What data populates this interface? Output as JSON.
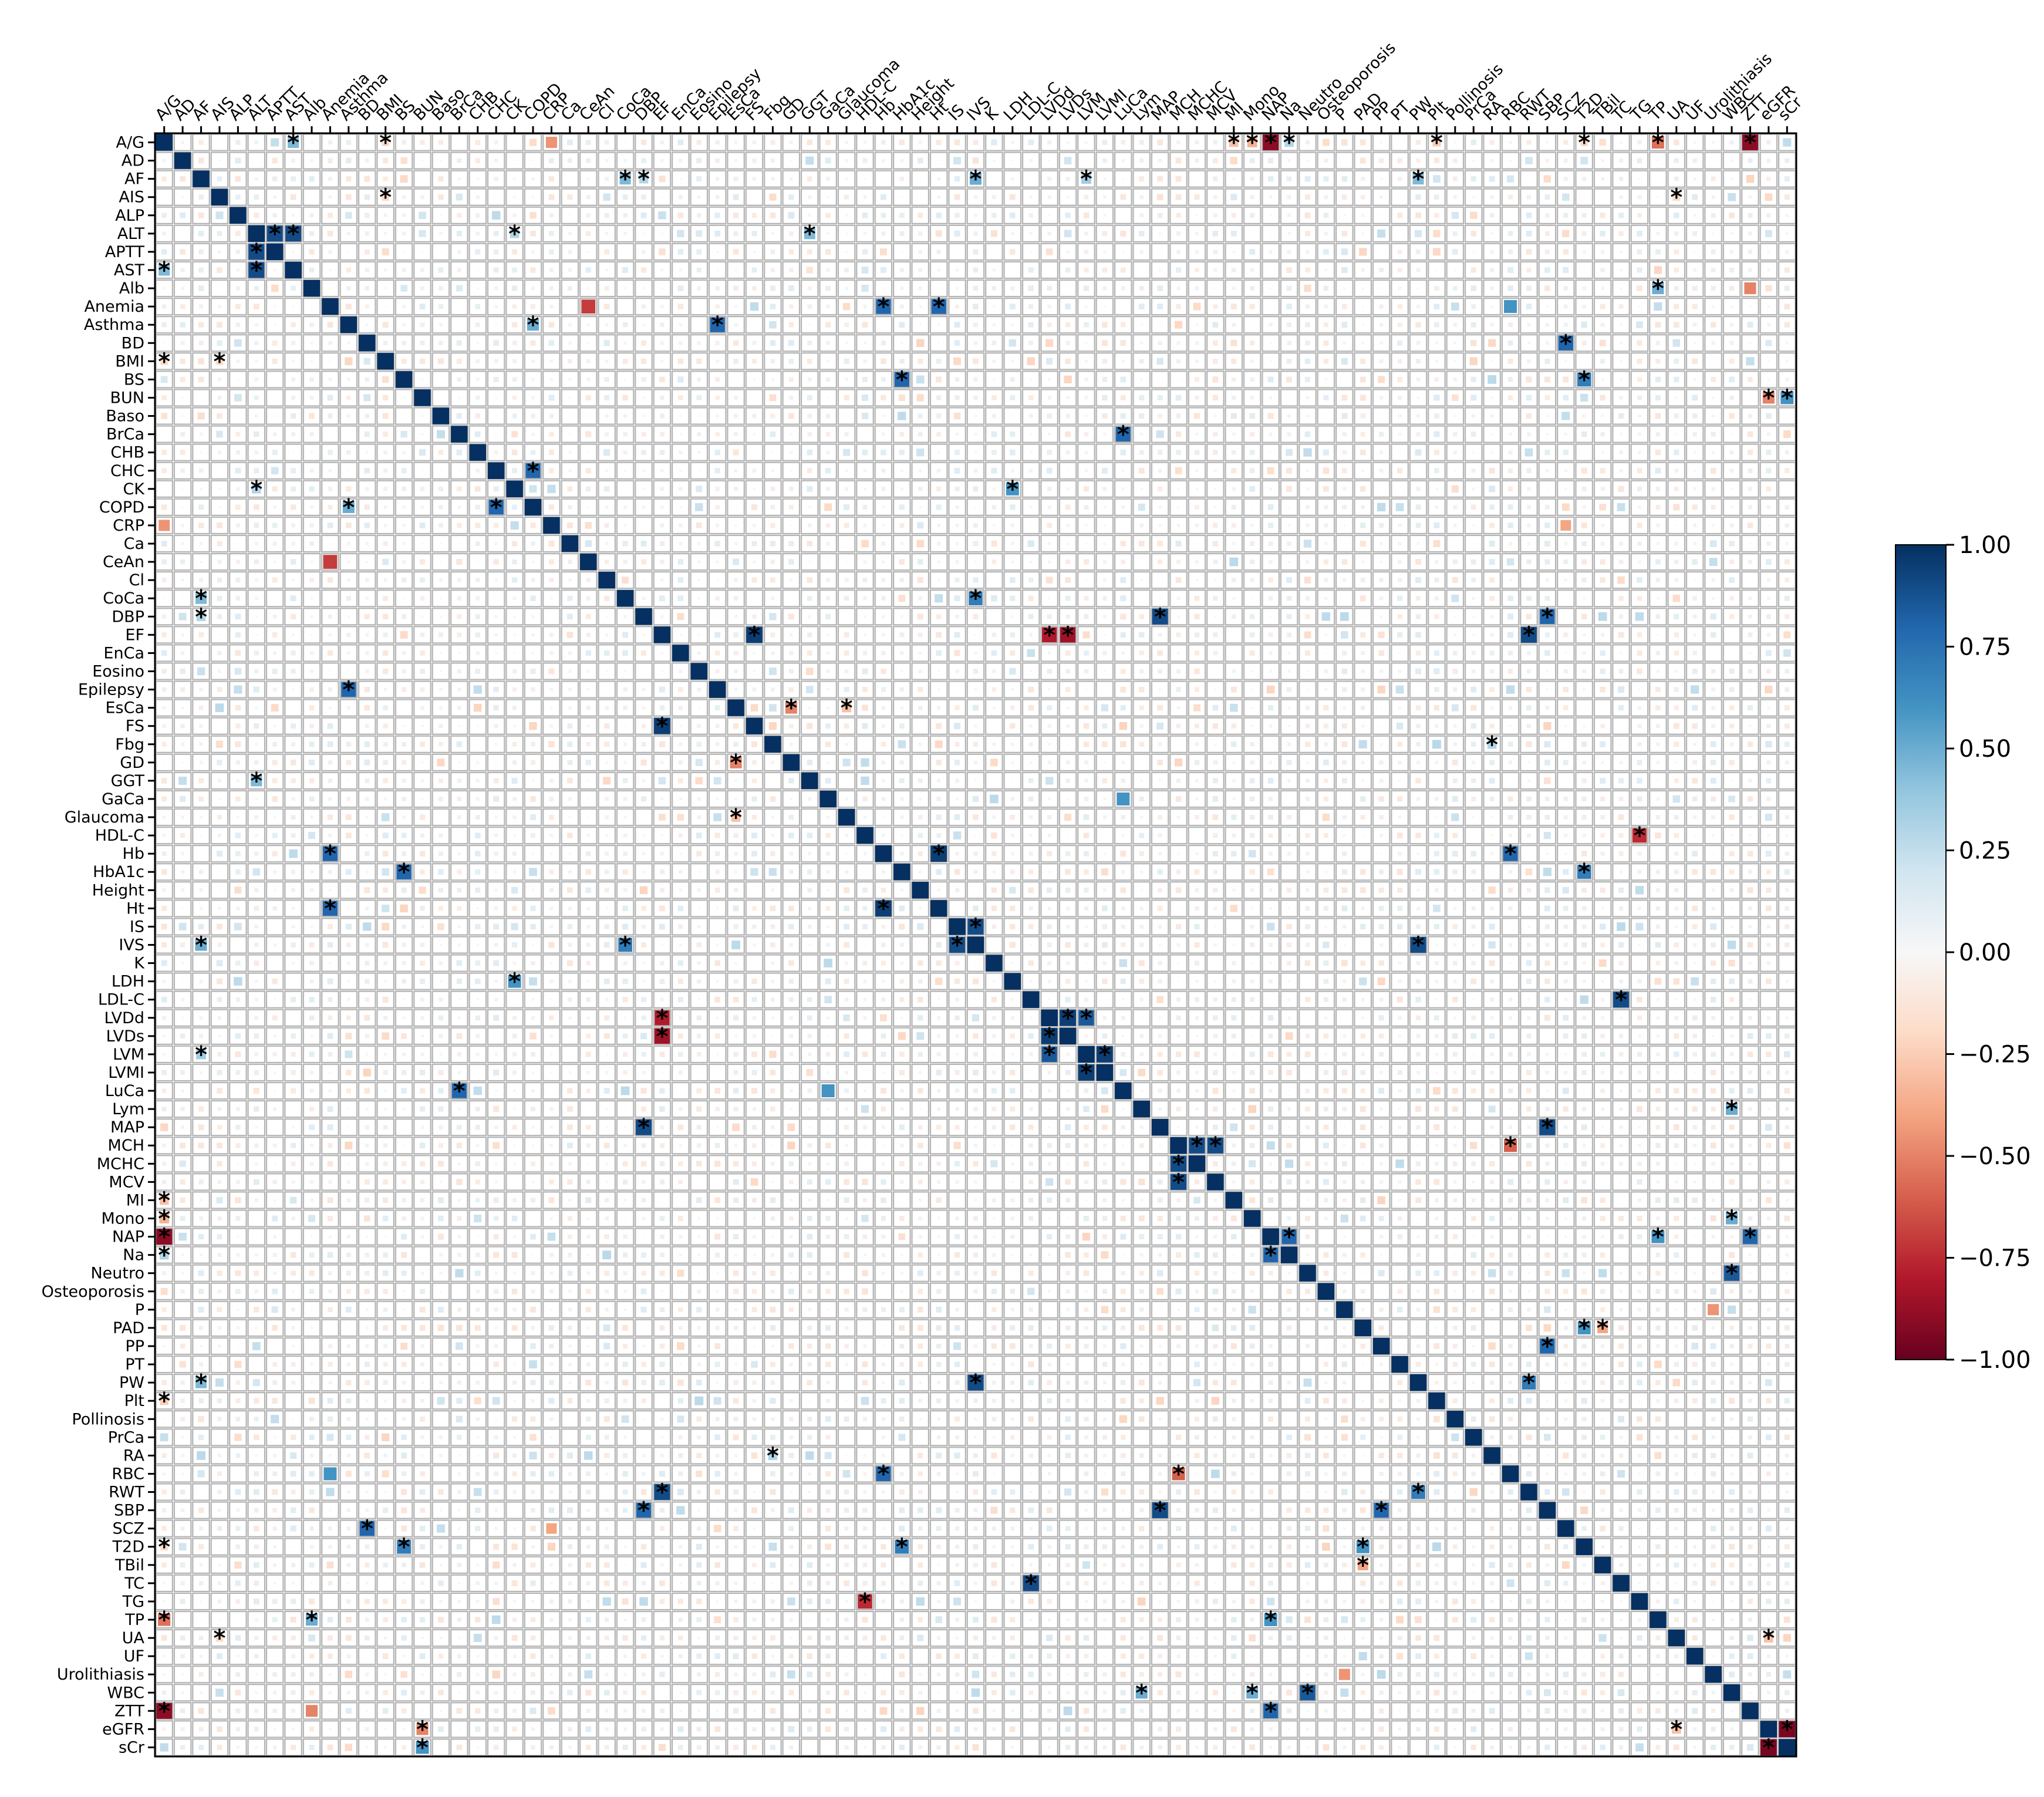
{
  "chart_data": {
    "type": "heatmap",
    "title": "",
    "xlabel": "",
    "ylabel": "",
    "variables": [
      "A/G",
      "AD",
      "AF",
      "AIS",
      "ALP",
      "ALT",
      "APTT",
      "AST",
      "Alb",
      "Anemia",
      "Asthma",
      "BD",
      "BMI",
      "BS",
      "BUN",
      "Baso",
      "BrCa",
      "CHB",
      "CHC",
      "CK",
      "COPD",
      "CRP",
      "Ca",
      "CeAn",
      "Cl",
      "CoCa",
      "DBP",
      "EF",
      "EnCa",
      "Eosino",
      "Epilepsy",
      "EsCa",
      "FS",
      "Fbg",
      "GD",
      "GGT",
      "GaCa",
      "Glaucoma",
      "HDL-C",
      "Hb",
      "HbA1c",
      "Height",
      "Ht",
      "IS",
      "IVS",
      "K",
      "LDH",
      "LDL-C",
      "LVDd",
      "LVDs",
      "LVM",
      "LVMI",
      "LuCa",
      "Lym",
      "MAP",
      "MCH",
      "MCHC",
      "MCV",
      "MI",
      "Mono",
      "NAP",
      "Na",
      "Neutro",
      "Osteoporosis",
      "P",
      "PAD",
      "PP",
      "PT",
      "PW",
      "Plt",
      "Pollinosis",
      "PrCa",
      "RA",
      "RBC",
      "RWT",
      "SBP",
      "SCZ",
      "T2D",
      "TBil",
      "TC",
      "TG",
      "TP",
      "UA",
      "UF",
      "Urolithiasis",
      "WBC",
      "ZTT",
      "eGFR",
      "sCr"
    ],
    "value_range": [
      -1.0,
      1.0
    ],
    "colormap": "RdBu",
    "colorbar_ticks": [
      "1.00",
      "0.75",
      "0.50",
      "0.25",
      "0.00",
      "−0.25",
      "−0.50",
      "−0.75",
      "−1.00"
    ],
    "colorbar_tick_values": [
      1.0,
      0.75,
      0.5,
      0.25,
      0.0,
      -0.25,
      -0.5,
      -0.75,
      -1.0
    ],
    "significance_marker": "*",
    "diagonal_value": 1.0,
    "grid": true,
    "notable_pairs": [
      {
        "a": "A/G",
        "b": "AST",
        "r": 0.45,
        "sig": true
      },
      {
        "a": "A/G",
        "b": "BMI",
        "r": -0.2,
        "sig": true
      },
      {
        "a": "A/G",
        "b": "CRP",
        "r": -0.45,
        "sig": false
      },
      {
        "a": "A/G",
        "b": "MI",
        "r": -0.3,
        "sig": true
      },
      {
        "a": "A/G",
        "b": "Mono",
        "r": -0.35,
        "sig": true
      },
      {
        "a": "A/G",
        "b": "NAP",
        "r": -0.9,
        "sig": true
      },
      {
        "a": "A/G",
        "b": "Na",
        "r": 0.3,
        "sig": true
      },
      {
        "a": "A/G",
        "b": "Plt",
        "r": -0.25,
        "sig": true
      },
      {
        "a": "A/G",
        "b": "T2D",
        "r": -0.2,
        "sig": true
      },
      {
        "a": "A/G",
        "b": "TP",
        "r": -0.55,
        "sig": true
      },
      {
        "a": "A/G",
        "b": "ZTT",
        "r": -0.9,
        "sig": true
      },
      {
        "a": "AD",
        "b": "IS",
        "r": 0.2,
        "sig": false
      },
      {
        "a": "AF",
        "b": "CoCa",
        "r": 0.45,
        "sig": true
      },
      {
        "a": "AF",
        "b": "DBP",
        "r": 0.3,
        "sig": true
      },
      {
        "a": "AF",
        "b": "IVS",
        "r": 0.5,
        "sig": true
      },
      {
        "a": "AF",
        "b": "PW",
        "r": 0.45,
        "sig": true
      },
      {
        "a": "AF",
        "b": "LVM",
        "r": 0.35,
        "sig": true
      },
      {
        "a": "AIS",
        "b": "BMI",
        "r": -0.2,
        "sig": true
      },
      {
        "a": "AIS",
        "b": "UA",
        "r": -0.2,
        "sig": true
      },
      {
        "a": "ALT",
        "b": "APTT",
        "r": 0.9,
        "sig": true
      },
      {
        "a": "ALT",
        "b": "AST",
        "r": 0.9,
        "sig": true
      },
      {
        "a": "ALT",
        "b": "GGT",
        "r": 0.45,
        "sig": true
      },
      {
        "a": "ALT",
        "b": "CK",
        "r": 0.3,
        "sig": true
      },
      {
        "a": "Alb",
        "b": "TP",
        "r": 0.5,
        "sig": true
      },
      {
        "a": "Alb",
        "b": "ZTT",
        "r": -0.5,
        "sig": false
      },
      {
        "a": "Anemia",
        "b": "Hb",
        "r": 0.8,
        "sig": true
      },
      {
        "a": "Anemia",
        "b": "Ht",
        "r": 0.8,
        "sig": true
      },
      {
        "a": "Anemia",
        "b": "CeAn",
        "r": -0.7,
        "sig": false
      },
      {
        "a": "Anemia",
        "b": "RBC",
        "r": 0.6,
        "sig": false
      },
      {
        "a": "Asthma",
        "b": "Epilepsy",
        "r": 0.8,
        "sig": true
      },
      {
        "a": "Asthma",
        "b": "COPD",
        "r": 0.5,
        "sig": true
      },
      {
        "a": "BD",
        "b": "SCZ",
        "r": 0.8,
        "sig": true
      },
      {
        "a": "BS",
        "b": "HbA1c",
        "r": 0.8,
        "sig": true
      },
      {
        "a": "BS",
        "b": "T2D",
        "r": 0.7,
        "sig": true
      },
      {
        "a": "BUN",
        "b": "eGFR",
        "r": -0.5,
        "sig": true
      },
      {
        "a": "BUN",
        "b": "sCr",
        "r": 0.6,
        "sig": true
      },
      {
        "a": "BrCa",
        "b": "LuCa",
        "r": 0.8,
        "sig": true
      },
      {
        "a": "CHC",
        "b": "COPD",
        "r": 0.8,
        "sig": true
      },
      {
        "a": "CK",
        "b": "LDH",
        "r": 0.6,
        "sig": true
      },
      {
        "a": "CoCa",
        "b": "IVS",
        "r": 0.7,
        "sig": true
      },
      {
        "a": "DBP",
        "b": "MAP",
        "r": 0.9,
        "sig": true
      },
      {
        "a": "DBP",
        "b": "SBP",
        "r": 0.8,
        "sig": true
      },
      {
        "a": "EF",
        "b": "FS",
        "r": 0.95,
        "sig": true
      },
      {
        "a": "EF",
        "b": "LVDs",
        "r": -0.85,
        "sig": true
      },
      {
        "a": "EF",
        "b": "LVDd",
        "r": -0.8,
        "sig": true
      },
      {
        "a": "EF",
        "b": "RWT",
        "r": 0.9,
        "sig": true
      },
      {
        "a": "EsCa",
        "b": "GD",
        "r": -0.5,
        "sig": true
      },
      {
        "a": "GaCa",
        "b": "LuCa",
        "r": 0.6,
        "sig": false
      },
      {
        "a": "HDL-C",
        "b": "TG",
        "r": -0.75,
        "sig": true
      },
      {
        "a": "Hb",
        "b": "Ht",
        "r": 0.95,
        "sig": true
      },
      {
        "a": "Hb",
        "b": "RBC",
        "r": 0.8,
        "sig": true
      },
      {
        "a": "IS",
        "b": "IVS",
        "r": 0.9,
        "sig": true
      },
      {
        "a": "LDL-C",
        "b": "TC",
        "r": 0.9,
        "sig": true
      },
      {
        "a": "LVDd",
        "b": "LVDs",
        "r": 0.95,
        "sig": true
      },
      {
        "a": "LVDd",
        "b": "LVM",
        "r": 0.85,
        "sig": true
      },
      {
        "a": "LVM",
        "b": "LVMI",
        "r": 0.95,
        "sig": true
      },
      {
        "a": "MAP",
        "b": "SBP",
        "r": 0.9,
        "sig": true
      },
      {
        "a": "MCH",
        "b": "MCHC",
        "r": 0.9,
        "sig": true
      },
      {
        "a": "MCH",
        "b": "MCV",
        "r": 0.9,
        "sig": true
      },
      {
        "a": "MCH",
        "b": "RBC",
        "r": -0.6,
        "sig": true
      },
      {
        "a": "NAP",
        "b": "Na",
        "r": 0.8,
        "sig": true
      },
      {
        "a": "NAP",
        "b": "TP",
        "r": 0.6,
        "sig": true
      },
      {
        "a": "NAP",
        "b": "ZTT",
        "r": 0.8,
        "sig": true
      },
      {
        "a": "Neutro",
        "b": "WBC",
        "r": 0.85,
        "sig": true
      },
      {
        "a": "PAD",
        "b": "T2D",
        "r": 0.6,
        "sig": true
      },
      {
        "a": "PP",
        "b": "SBP",
        "r": 0.8,
        "sig": true
      },
      {
        "a": "PW",
        "b": "IVS",
        "r": 0.9,
        "sig": true
      },
      {
        "a": "PW",
        "b": "RWT",
        "r": 0.7,
        "sig": true
      },
      {
        "a": "P",
        "b": "Urolithiasis",
        "r": -0.45,
        "sig": false
      },
      {
        "a": "UA",
        "b": "eGFR",
        "r": -0.3,
        "sig": true
      },
      {
        "a": "eGFR",
        "b": "sCr",
        "r": -0.95,
        "sig": true
      },
      {
        "a": "Lym",
        "b": "WBC",
        "r": 0.5,
        "sig": true
      },
      {
        "a": "Mono",
        "b": "WBC",
        "r": 0.5,
        "sig": true
      },
      {
        "a": "Glaucoma",
        "b": "EsCa",
        "r": -0.3,
        "sig": true
      },
      {
        "a": "Fbg",
        "b": "RA",
        "r": 0.3,
        "sig": true
      },
      {
        "a": "T2D",
        "b": "HbA1c",
        "r": 0.7,
        "sig": true
      },
      {
        "a": "TBil",
        "b": "PAD",
        "r": -0.4,
        "sig": true
      },
      {
        "a": "SCZ",
        "b": "CRP",
        "r": -0.4,
        "sig": false
      }
    ]
  }
}
